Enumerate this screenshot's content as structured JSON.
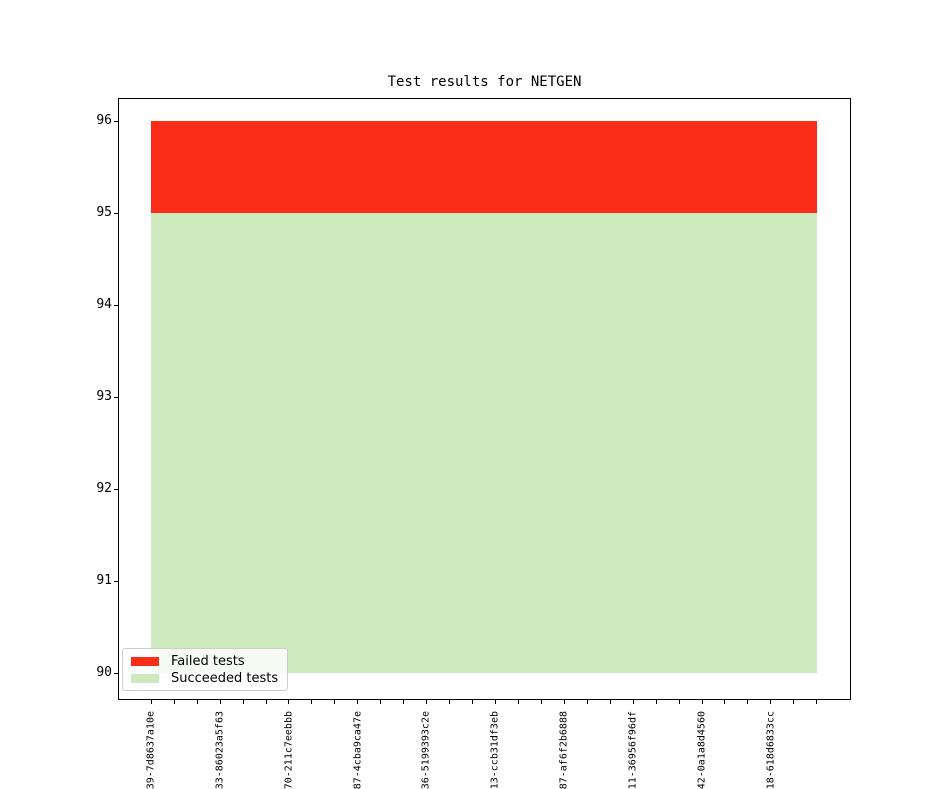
{
  "figure": {
    "title": "Test results for NETGEN",
    "background": "#ffffff"
  },
  "colors": {
    "failed": "#fa2d19",
    "succeeded": "#cdeabe",
    "axis": "#000000",
    "legend_border": "#cccccc"
  },
  "legend": {
    "position": "lower-left",
    "items": [
      {
        "label": "Failed tests",
        "color_key": "failed"
      },
      {
        "label": "Succeeded tests",
        "color_key": "succeeded"
      }
    ]
  },
  "chart_data": {
    "type": "area",
    "title": "Test results for NETGEN",
    "x_tick_count": 30,
    "x_label_every": 3,
    "x_tick_labels": [
      "39-7d8637a10e",
      "33-86023a5f63",
      "70-211c7eebbb",
      "87-4cba9ca47e",
      "36-5199393c2e",
      "13-ccb31df3eb",
      "87-af6f2b6888",
      "11-36956f96df",
      "42-0a1a8d4560",
      "18-618d6833cc"
    ],
    "y_ticks": [
      90,
      91,
      92,
      93,
      94,
      95,
      96
    ],
    "ylim": [
      89.7,
      96.25
    ],
    "grid": false,
    "series": [
      {
        "name": "Succeeded tests",
        "color_key": "succeeded",
        "band": [
          90,
          95
        ],
        "value_per_build": 95
      },
      {
        "name": "Failed tests",
        "color_key": "failed",
        "band": [
          95,
          96
        ],
        "value_per_build": 1
      }
    ],
    "legend_position": "lower left"
  }
}
